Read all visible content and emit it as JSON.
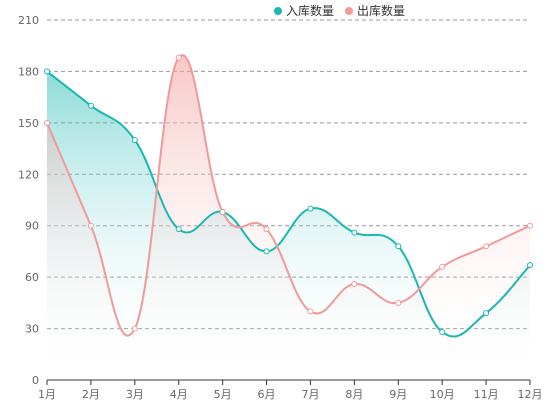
{
  "chart_data": {
    "type": "area",
    "categories": [
      "1月",
      "2月",
      "3月",
      "4月",
      "5月",
      "6月",
      "7月",
      "8月",
      "9月",
      "10月",
      "11月",
      "12月"
    ],
    "series": [
      {
        "name": "入库数量",
        "values": [
          180,
          160,
          140,
          88,
          98,
          75,
          100,
          86,
          78,
          28,
          39,
          67
        ],
        "color": "#1ab8b3"
      },
      {
        "name": "出库数量",
        "values": [
          150,
          90,
          30,
          188,
          98,
          88,
          40,
          56,
          45,
          66,
          78,
          90
        ],
        "color": "#f19a99"
      }
    ],
    "yticks": [
      "0",
      "30",
      "60",
      "90",
      "120",
      "150",
      "180",
      "210"
    ],
    "ylim": [
      0,
      210
    ],
    "grid": "horizontal dashed",
    "legend_position": "top"
  }
}
